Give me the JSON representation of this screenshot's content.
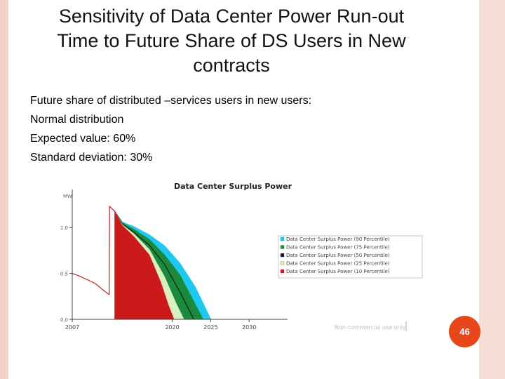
{
  "slide": {
    "title_lines": [
      "Sensitivity of Data Center Power Run-out",
      "Time to Future Share of DS Users in New",
      "contracts"
    ],
    "bullets": [
      "Future share of distributed –services users in new users:",
      "Normal distribution",
      "Expected value: 60%",
      "Standard deviation: 30%"
    ],
    "page_number": "46",
    "accent_color": "#e7471a"
  },
  "chart_data": {
    "type": "area",
    "title": "Data Center Surplus Power",
    "ylabel": "MW",
    "x_ticks": [
      "2007",
      "2020",
      "2025",
      "2030"
    ],
    "y_ticks": [
      "0.0",
      "0.5",
      "1.0"
    ],
    "xlim": [
      2007,
      2035
    ],
    "ylim": [
      0,
      1.3
    ],
    "watermark": "Non-commercial use only",
    "legend_position": "right",
    "history": {
      "x": [
        2007,
        2008,
        2009,
        2010,
        2011,
        2011.8,
        2011.85,
        2012.5
      ],
      "y": [
        0.5,
        0.47,
        0.43,
        0.39,
        0.32,
        0.27,
        1.23,
        1.18
      ]
    },
    "series": [
      {
        "name": "Data Center Surplus Power (90 Percentile)",
        "color": "#1ec8f0",
        "x": [
          2012.5,
          2013.5,
          2015,
          2017,
          2019,
          2021,
          2023,
          2025
        ],
        "y": [
          1.18,
          1.06,
          1.01,
          0.92,
          0.8,
          0.61,
          0.35,
          0.0
        ]
      },
      {
        "name": "Data Center Surplus Power (75 Percentile)",
        "color": "#1a8a3c",
        "x": [
          2012.5,
          2013.5,
          2015,
          2017,
          2019,
          2021,
          2023,
          2024
        ],
        "y": [
          1.18,
          1.05,
          0.98,
          0.87,
          0.7,
          0.48,
          0.16,
          0.0
        ]
      },
      {
        "name": "Data Center Surplus Power (50 Percentile)",
        "color": "#1a1a1a",
        "x": [
          2012.5,
          2013.5,
          2015,
          2017,
          2019,
          2021,
          2022.8
        ],
        "y": [
          1.18,
          1.04,
          0.95,
          0.81,
          0.6,
          0.3,
          0.0
        ]
      },
      {
        "name": "Data Center Surplus Power (25 Percentile)",
        "color": "#d8f0c0",
        "x": [
          2012.5,
          2013.5,
          2015,
          2017,
          2019,
          2020.5,
          2021.5
        ],
        "y": [
          1.18,
          1.03,
          0.93,
          0.76,
          0.46,
          0.17,
          0.0
        ]
      },
      {
        "name": "Data Center Surplus Power (10 Percentile)",
        "color": "#cc1a1a",
        "x": [
          2012.5,
          2013.5,
          2015,
          2017,
          2018.5,
          2019.5,
          2020.2
        ],
        "y": [
          1.18,
          1.02,
          0.9,
          0.7,
          0.4,
          0.15,
          0.0
        ]
      }
    ]
  }
}
